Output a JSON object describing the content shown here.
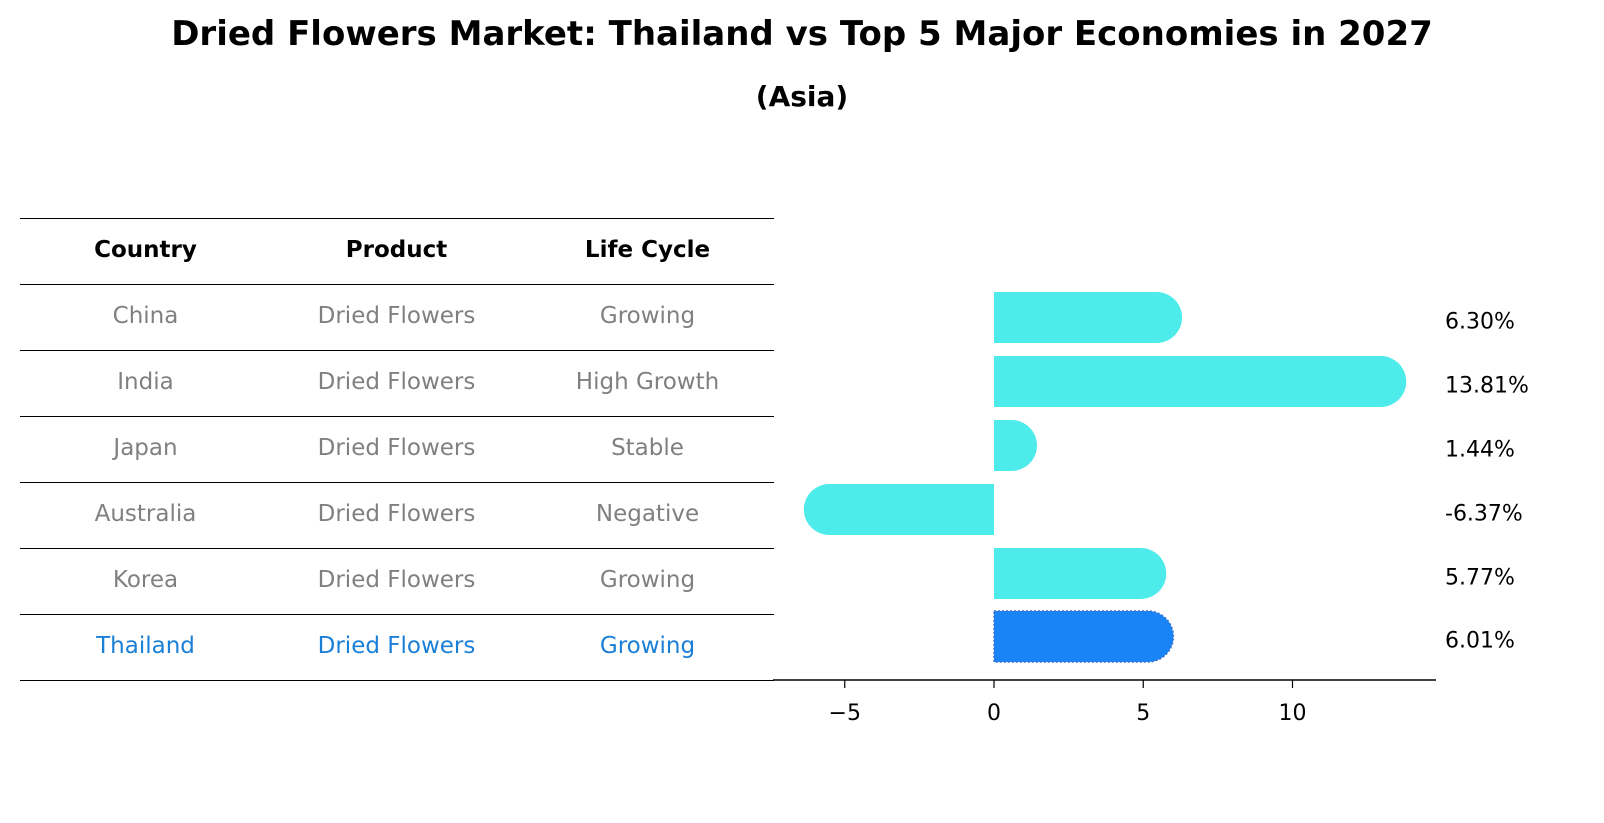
{
  "header": {
    "title": "Dried Flowers Market: Thailand vs Top 5 Major Economies in 2027",
    "subtitle": "(Asia)"
  },
  "table": {
    "columns": [
      "Country",
      "Product",
      "Life Cycle"
    ],
    "rows": [
      {
        "country": "China",
        "product": "Dried Flowers",
        "life_cycle": "Growing"
      },
      {
        "country": "India",
        "product": "Dried Flowers",
        "life_cycle": "High Growth"
      },
      {
        "country": "Japan",
        "product": "Dried Flowers",
        "life_cycle": "Stable"
      },
      {
        "country": "Australia",
        "product": "Dried Flowers",
        "life_cycle": "Negative"
      },
      {
        "country": "Korea",
        "product": "Dried Flowers",
        "life_cycle": "Growing"
      },
      {
        "country": "Thailand",
        "product": "Dried Flowers",
        "life_cycle": "Growing"
      }
    ],
    "highlight_row": "Thailand",
    "highlight_color": "#1a7fd6",
    "text_color": "#808080"
  },
  "colors": {
    "bar_default": "#4deceb",
    "bar_highlight": "#1984f5",
    "axis": "#000000"
  },
  "chart_data": {
    "type": "bar",
    "orientation": "horizontal",
    "title": "Dried Flowers Market: Thailand vs Top 5 Major Economies in 2027",
    "subtitle": "(Asia)",
    "categories": [
      "China",
      "India",
      "Japan",
      "Australia",
      "Korea",
      "Thailand"
    ],
    "values": [
      6.3,
      13.81,
      1.44,
      -6.37,
      5.77,
      6.01
    ],
    "value_labels": [
      "6.30%",
      "13.81%",
      "1.44%",
      "-6.37%",
      "5.77%",
      "6.01%"
    ],
    "xlabel": "",
    "ylabel": "",
    "xticks": [
      "−5",
      "0",
      "5",
      "10"
    ],
    "xtick_values": [
      -5,
      0,
      5,
      10
    ],
    "xlim": [
      -7.4,
      14.8
    ],
    "grid": false,
    "legend": null,
    "highlight": "Thailand"
  }
}
